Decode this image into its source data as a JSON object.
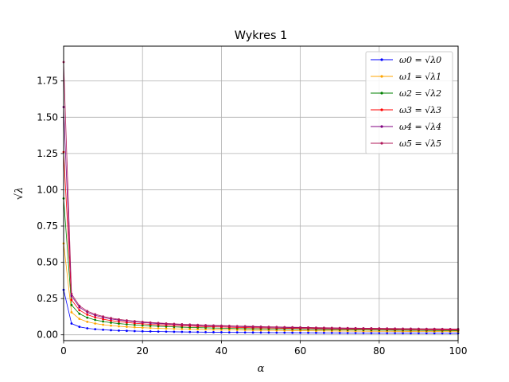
{
  "chart_data": {
    "type": "line",
    "title": "Wykres 1",
    "xlabel": "α",
    "ylabel": "√λ",
    "xlim": [
      0,
      100
    ],
    "ylim": [
      -0.04,
      1.99
    ],
    "xticks": [
      0,
      20,
      40,
      60,
      80,
      100
    ],
    "yticks": [
      0.0,
      0.25,
      0.5,
      0.75,
      1.0,
      1.25,
      1.5,
      1.75
    ],
    "grid": true,
    "legend_position": "top-right",
    "x": [
      0,
      2,
      4,
      6,
      8,
      10,
      12,
      14,
      16,
      18,
      20,
      22,
      24,
      26,
      28,
      30,
      32,
      34,
      36,
      38,
      40,
      42,
      44,
      46,
      48,
      50,
      52,
      54,
      56,
      58,
      60,
      62,
      64,
      66,
      68,
      70,
      72,
      74,
      76,
      78,
      80,
      82,
      84,
      86,
      88,
      90,
      92,
      94,
      96,
      98,
      100
    ],
    "series": [
      {
        "name": "ω0 = √λ0",
        "color": "#0000ff",
        "c": 0.11
      },
      {
        "name": "ω1 = √λ1",
        "color": "#ffa500",
        "c": 0.22
      },
      {
        "name": "ω2 = √λ2",
        "color": "#008000",
        "c": 0.29
      },
      {
        "name": "ω3 = √λ3",
        "color": "#ff0000",
        "c": 0.34
      },
      {
        "name": "ω4 = √λ4",
        "color": "#800080",
        "c": 0.38
      },
      {
        "name": "ω5 = √λ5",
        "color": "#b0185a",
        "c": 0.4
      }
    ],
    "y0": [
      0.31,
      0.63,
      0.94,
      1.26,
      1.57,
      1.88
    ]
  }
}
